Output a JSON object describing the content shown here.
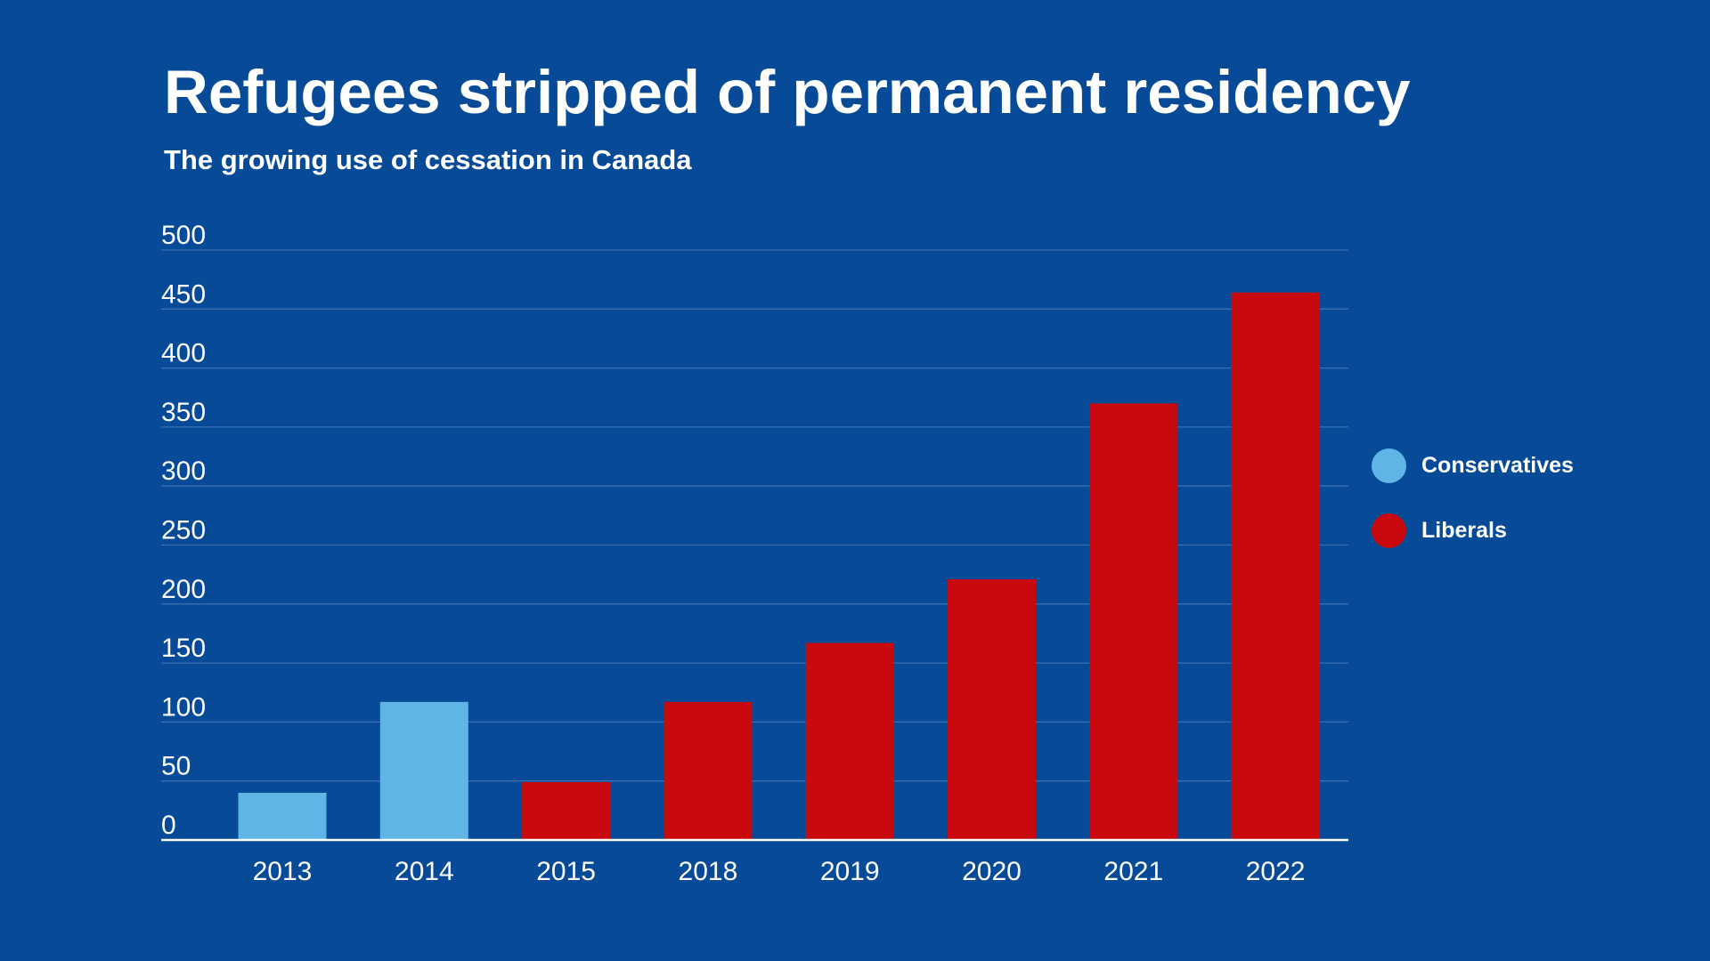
{
  "chart_data": {
    "type": "bar",
    "title": "Refugees stripped of permanent residency",
    "subtitle": "The growing use of cessation in Canada",
    "categories": [
      "2013",
      "2014",
      "2015",
      "2018",
      "2019",
      "2020",
      "2021",
      "2022"
    ],
    "values": [
      40,
      117,
      49,
      117,
      167,
      221,
      370,
      464
    ],
    "bar_groups": [
      "Conservatives",
      "Conservatives",
      "Liberals",
      "Liberals",
      "Liberals",
      "Liberals",
      "Liberals",
      "Liberals"
    ],
    "ylim": [
      0,
      500
    ],
    "yticks": [
      "0",
      "50",
      "100",
      "150",
      "200",
      "250",
      "300",
      "350",
      "400",
      "450",
      "500"
    ],
    "grid": true,
    "xlabel": "",
    "ylabel": "",
    "legend_position": "right",
    "legend": [
      {
        "name": "Conservatives",
        "color": "#5fb6e6"
      },
      {
        "name": "Liberals",
        "color": "#c80a0e"
      }
    ],
    "colors": {
      "background": "#074a97",
      "gridline": "#3a6fb1",
      "axis": "#ffffff",
      "text": "#ffffff"
    }
  }
}
